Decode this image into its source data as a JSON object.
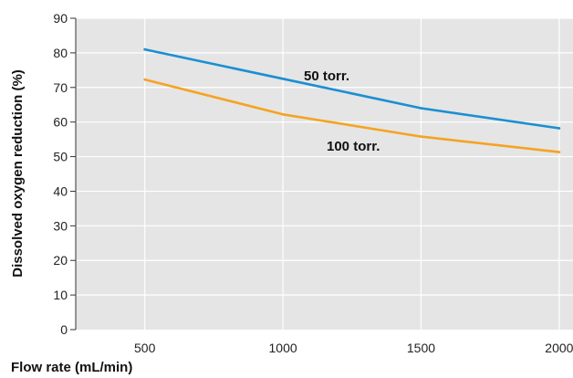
{
  "chart_data": {
    "type": "line",
    "title": "",
    "xlabel": "Flow rate (mL/min)",
    "ylabel": "Dissolved oxygen  reduction (%)",
    "x": [
      500,
      1000,
      1500,
      2000
    ],
    "x_ticks": [
      "500",
      "1000",
      "1500",
      "2000"
    ],
    "xlim": [
      250,
      2050
    ],
    "ylim": [
      0,
      90
    ],
    "y_ticks": [
      "0",
      "10",
      "20",
      "30",
      "40",
      "50",
      "60",
      "70",
      "80",
      "90"
    ],
    "grid": true,
    "legend": "none",
    "background_color": "#e5e5e5",
    "series": [
      {
        "name": "50 torr.",
        "values": [
          81,
          72.5,
          64,
          58.2
        ],
        "color": "#1b8fd2"
      },
      {
        "name": "100 torr.",
        "values": [
          72.3,
          62.2,
          55.8,
          51.3
        ],
        "color": "#f5a323"
      }
    ]
  }
}
